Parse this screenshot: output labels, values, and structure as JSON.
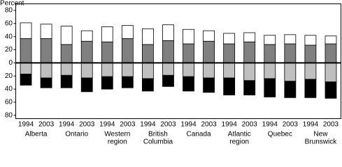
{
  "chart_data": {
    "type": "stacked-bar",
    "y_label": "Percent",
    "categories": [
      "1994",
      "2003",
      "1994",
      "2003",
      "1994",
      "2003",
      "1994",
      "2003",
      "1994",
      "2003",
      "1994",
      "2003",
      "1994",
      "2003",
      "1994",
      "2003"
    ],
    "groups": [
      {
        "label": [
          "Alberta"
        ]
      },
      {
        "label": [
          "Ontario"
        ]
      },
      {
        "label": [
          "Western",
          "region"
        ]
      },
      {
        "label": [
          "British",
          "Columbia"
        ]
      },
      {
        "label": [
          "Canada"
        ],
        "color": "#1e8c3a"
      },
      {
        "label": [
          "Atlantic",
          "region"
        ]
      },
      {
        "label": [
          "Quebec"
        ]
      },
      {
        "label": [
          "New",
          "Brunswick"
        ]
      }
    ],
    "series": [
      {
        "color": "#808080",
        "values": [
          37,
          37,
          28,
          33,
          32,
          37,
          28,
          34,
          29,
          33,
          29,
          32,
          28,
          29,
          27,
          29
        ]
      },
      {
        "color": "#ffffff",
        "values": [
          24,
          22,
          28,
          16,
          23,
          20,
          24,
          24,
          22,
          16,
          16,
          14,
          14,
          14,
          15,
          12
        ]
      },
      {
        "color": "#bfbfbf",
        "values": [
          -17,
          -23,
          -19,
          -23,
          -21,
          -21,
          -24,
          -19,
          -21,
          -23,
          -23,
          -27,
          -24,
          -28,
          -25,
          -29
        ]
      },
      {
        "color": "#000000",
        "values": [
          -17,
          -15,
          -19,
          -21,
          -19,
          -17,
          -19,
          -17,
          -22,
          -22,
          -26,
          -22,
          -28,
          -25,
          -28,
          -25
        ]
      }
    ],
    "ylim": [
      -85,
      90
    ],
    "yticks": [
      80,
      60,
      40,
      20,
      0,
      {
        "value": -20,
        "label": "20"
      },
      {
        "value": -40,
        "label": "40"
      },
      {
        "value": -60,
        "label": "60"
      },
      {
        "value": -80,
        "label": "80"
      }
    ]
  }
}
